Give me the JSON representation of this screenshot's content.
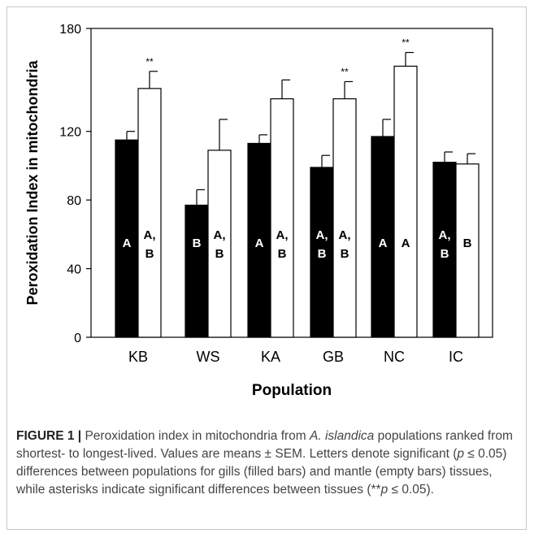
{
  "chart_data": {
    "type": "bar",
    "ylabel": "Peroxidation Index in mitochondria",
    "xlabel": "Population",
    "ylim": [
      0,
      180
    ],
    "yticks": [
      "0",
      "40",
      "80",
      "120",
      "180"
    ],
    "categories": [
      "KB",
      "WS",
      "KA",
      "GB",
      "NC",
      "IC"
    ],
    "series": [
      {
        "name": "gills",
        "fill": "#000000",
        "values": [
          115,
          77,
          113,
          99,
          117,
          102
        ],
        "sem": [
          5,
          9,
          5,
          7,
          10,
          6
        ],
        "letters": [
          "A",
          "B",
          "A",
          "A,\nB",
          "A",
          "A,\nB"
        ]
      },
      {
        "name": "mantle",
        "fill": "#ffffff",
        "values": [
          145,
          109,
          139,
          139,
          158,
          101
        ],
        "sem": [
          10,
          18,
          11,
          10,
          8,
          6
        ],
        "letters": [
          "A,\nB",
          "A,\nB",
          "A,\nB",
          "A,\nB",
          "A",
          "B"
        ]
      }
    ],
    "significance": [
      "**",
      "",
      "",
      "**",
      "**",
      ""
    ]
  },
  "caption": {
    "label": "FIGURE 1 |",
    "before_species": " Peroxidation index in mitochondria from ",
    "species": "A. islandica",
    "after_species": " populations ranked from shortest- to longest-lived. Values are means ± SEM. Letters denote significant (",
    "p1": "p",
    "after_p1": " ≤ 0.05) differences between populations for gills (filled bars) and mantle (empty bars) tissues, while asterisks indicate significant differences between tissues (**",
    "p2": "p",
    "after_p2": " ≤ 0.05)."
  }
}
